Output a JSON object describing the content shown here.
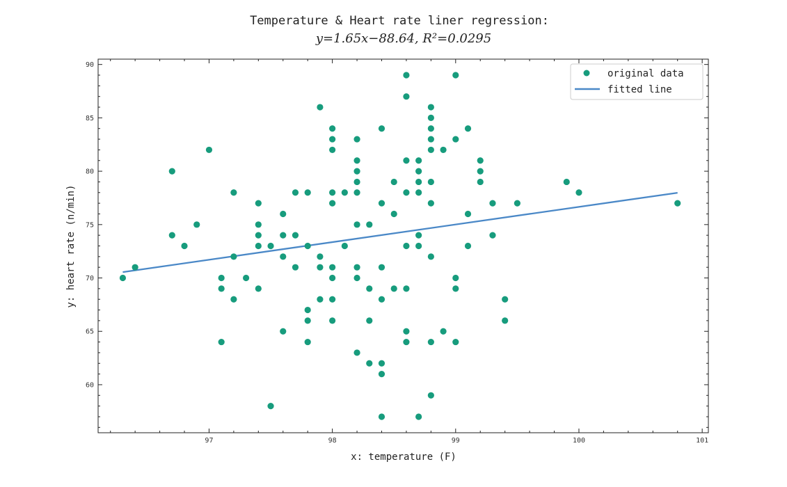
{
  "chart_data": {
    "type": "scatter",
    "title": "Temperature & Heart rate liner regression:",
    "subtitle": "y=1.65x−88.64,    R²=0.0295",
    "xlabel": "x: temperature (F)",
    "ylabel": "y: heart rate (n/min)",
    "xlim": [
      96.1,
      101.05
    ],
    "ylim": [
      55.5,
      90.5
    ],
    "x_ticks": [
      97,
      98,
      99,
      100,
      101
    ],
    "y_ticks": [
      60,
      65,
      70,
      75,
      80,
      85,
      90
    ],
    "grid": false,
    "legend_position": "top-right",
    "colors": {
      "points": "#179c7d",
      "line": "#4a88c7"
    },
    "series": [
      {
        "name": "original data",
        "kind": "scatter",
        "points": [
          [
            96.3,
            70
          ],
          [
            96.4,
            71
          ],
          [
            96.7,
            80
          ],
          [
            96.7,
            74
          ],
          [
            96.8,
            73
          ],
          [
            96.9,
            75
          ],
          [
            97.0,
            82
          ],
          [
            97.1,
            70
          ],
          [
            97.1,
            69
          ],
          [
            97.1,
            64
          ],
          [
            97.2,
            78
          ],
          [
            97.2,
            72
          ],
          [
            97.2,
            68
          ],
          [
            97.3,
            70
          ],
          [
            97.4,
            77
          ],
          [
            97.4,
            75
          ],
          [
            97.4,
            74
          ],
          [
            97.4,
            73
          ],
          [
            97.4,
            69
          ],
          [
            97.5,
            73
          ],
          [
            97.5,
            58
          ],
          [
            97.6,
            76
          ],
          [
            97.6,
            74
          ],
          [
            97.6,
            72
          ],
          [
            97.6,
            65
          ],
          [
            97.7,
            78
          ],
          [
            97.7,
            74
          ],
          [
            97.7,
            71
          ],
          [
            97.8,
            78
          ],
          [
            97.8,
            73
          ],
          [
            97.8,
            67
          ],
          [
            97.8,
            66
          ],
          [
            97.8,
            64
          ],
          [
            97.9,
            86
          ],
          [
            97.9,
            72
          ],
          [
            97.9,
            71
          ],
          [
            97.9,
            68
          ],
          [
            98.0,
            84
          ],
          [
            98.0,
            83
          ],
          [
            98.0,
            82
          ],
          [
            98.0,
            78
          ],
          [
            98.0,
            77
          ],
          [
            98.0,
            71
          ],
          [
            98.0,
            70
          ],
          [
            98.0,
            68
          ],
          [
            98.0,
            66
          ],
          [
            98.1,
            78
          ],
          [
            98.1,
            73
          ],
          [
            98.2,
            83
          ],
          [
            98.2,
            81
          ],
          [
            98.2,
            80
          ],
          [
            98.2,
            79
          ],
          [
            98.2,
            78
          ],
          [
            98.2,
            75
          ],
          [
            98.2,
            71
          ],
          [
            98.2,
            70
          ],
          [
            98.2,
            63
          ],
          [
            98.3,
            75
          ],
          [
            98.3,
            69
          ],
          [
            98.3,
            66
          ],
          [
            98.3,
            62
          ],
          [
            98.4,
            84
          ],
          [
            98.4,
            77
          ],
          [
            98.4,
            71
          ],
          [
            98.4,
            68
          ],
          [
            98.4,
            62
          ],
          [
            98.4,
            61
          ],
          [
            98.4,
            57
          ],
          [
            98.5,
            79
          ],
          [
            98.5,
            76
          ],
          [
            98.5,
            69
          ],
          [
            98.6,
            89
          ],
          [
            98.6,
            87
          ],
          [
            98.6,
            81
          ],
          [
            98.6,
            78
          ],
          [
            98.6,
            73
          ],
          [
            98.6,
            69
          ],
          [
            98.6,
            65
          ],
          [
            98.6,
            64
          ],
          [
            98.7,
            81
          ],
          [
            98.7,
            80
          ],
          [
            98.7,
            79
          ],
          [
            98.7,
            78
          ],
          [
            98.7,
            74
          ],
          [
            98.7,
            73
          ],
          [
            98.7,
            57
          ],
          [
            98.8,
            86
          ],
          [
            98.8,
            85
          ],
          [
            98.8,
            84
          ],
          [
            98.8,
            83
          ],
          [
            98.8,
            82
          ],
          [
            98.8,
            79
          ],
          [
            98.8,
            77
          ],
          [
            98.8,
            72
          ],
          [
            98.8,
            64
          ],
          [
            98.8,
            59
          ],
          [
            98.9,
            82
          ],
          [
            98.9,
            65
          ],
          [
            99.0,
            89
          ],
          [
            99.0,
            83
          ],
          [
            99.0,
            70
          ],
          [
            99.0,
            69
          ],
          [
            99.0,
            64
          ],
          [
            99.1,
            84
          ],
          [
            99.1,
            76
          ],
          [
            99.1,
            73
          ],
          [
            99.2,
            81
          ],
          [
            99.2,
            80
          ],
          [
            99.2,
            79
          ],
          [
            99.3,
            77
          ],
          [
            99.3,
            74
          ],
          [
            99.4,
            68
          ],
          [
            99.4,
            66
          ],
          [
            99.5,
            77
          ],
          [
            99.9,
            79
          ],
          [
            100.0,
            78
          ],
          [
            100.8,
            77
          ]
        ]
      },
      {
        "name": "fitted line",
        "kind": "line",
        "points": [
          [
            96.3,
            70.55
          ],
          [
            100.8,
            77.98
          ]
        ]
      }
    ]
  }
}
